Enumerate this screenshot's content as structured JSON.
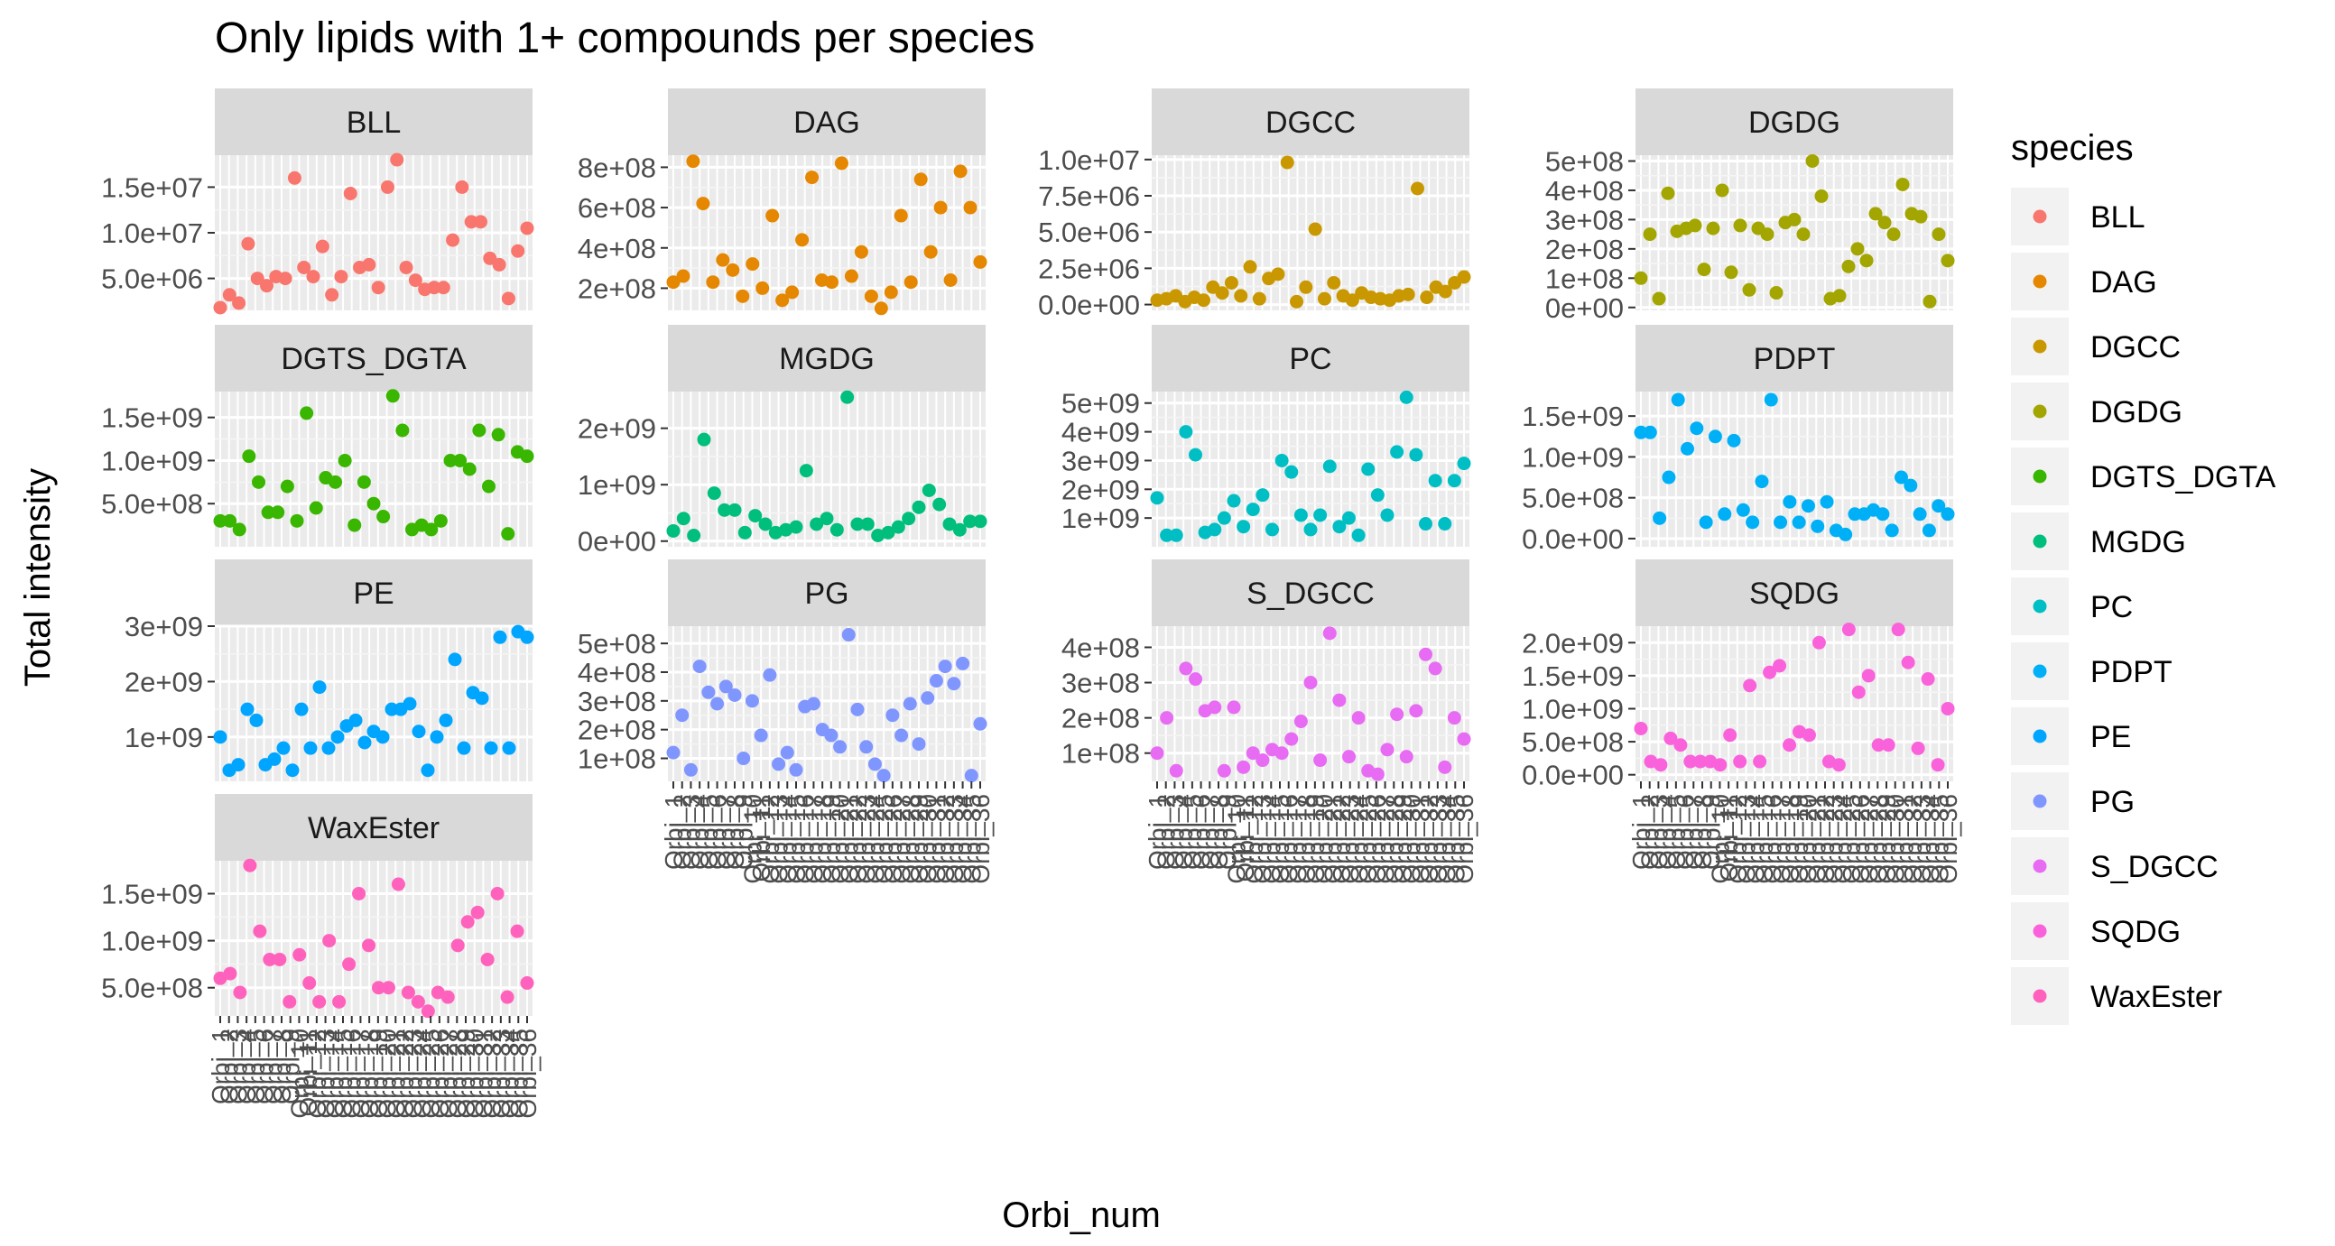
{
  "chart_data": {
    "type": "scatter",
    "title": "Only lipids with 1+ compounds per species",
    "xlabel": "Orbi_num",
    "ylabel": "Total intensity",
    "legend": {
      "title": "species",
      "placement": "right"
    },
    "x_tick_label": "Orbi_",
    "grid": true,
    "panels": [
      {
        "name": "BLL",
        "color": "#F8766D",
        "ylim": [
          1500000,
          18500000
        ],
        "ticks": [
          {
            "v": 5000000,
            "label": "5.0e+06"
          },
          {
            "v": 10000000,
            "label": "1.0e+07"
          },
          {
            "v": 15000000,
            "label": "1.5e+07"
          }
        ],
        "values": [
          1800000,
          3200000,
          2300000,
          8800000,
          5000000,
          4200000,
          5200000,
          5000000,
          16000000,
          6200000,
          5200000,
          8500000,
          3200000,
          5200000,
          14300000,
          6200000,
          6500000,
          4000000,
          15000000,
          18000000,
          6200000,
          4800000,
          3800000,
          4000000,
          4000000,
          9200000,
          15000000,
          11200000,
          11200000,
          7200000,
          6500000,
          2800000,
          8000000,
          10500000
        ]
      },
      {
        "name": "DAG",
        "color": "#E58700",
        "ylim": [
          90000000,
          860000000
        ],
        "ticks": [
          {
            "v": 200000000,
            "label": "2e+08"
          },
          {
            "v": 400000000,
            "label": "4e+08"
          },
          {
            "v": 600000000,
            "label": "6e+08"
          },
          {
            "v": 800000000,
            "label": "8e+08"
          }
        ],
        "values": [
          230000000,
          260000000,
          830000000,
          620000000,
          230000000,
          340000000,
          290000000,
          160000000,
          320000000,
          200000000,
          560000000,
          140000000,
          180000000,
          440000000,
          750000000,
          240000000,
          230000000,
          820000000,
          260000000,
          380000000,
          160000000,
          100000000,
          180000000,
          560000000,
          230000000,
          740000000,
          380000000,
          600000000,
          240000000,
          780000000,
          600000000,
          330000000
        ]
      },
      {
        "name": "DGCC",
        "color": "#C99800",
        "ylim": [
          -400000,
          10300000
        ],
        "ticks": [
          {
            "v": 0,
            "label": "0.0e+00"
          },
          {
            "v": 2500000,
            "label": "2.5e+06"
          },
          {
            "v": 5000000,
            "label": "5.0e+06"
          },
          {
            "v": 7500000,
            "label": "7.5e+06"
          },
          {
            "v": 10000000,
            "label": "1.0e+07"
          }
        ],
        "values": [
          300000,
          400000,
          600000,
          200000,
          500000,
          300000,
          1200000,
          800000,
          1500000,
          600000,
          2600000,
          400000,
          1800000,
          2100000,
          9800000,
          200000,
          1200000,
          5200000,
          400000,
          1500000,
          600000,
          300000,
          800000,
          500000,
          400000,
          300000,
          600000,
          700000,
          8000000,
          500000,
          1200000,
          900000,
          1500000,
          1900000
        ]
      },
      {
        "name": "DGDG",
        "color": "#A3A500",
        "ylim": [
          -10000000,
          520000000
        ],
        "ticks": [
          {
            "v": 0,
            "label": "0e+00"
          },
          {
            "v": 100000000,
            "label": "1e+08"
          },
          {
            "v": 200000000,
            "label": "2e+08"
          },
          {
            "v": 300000000,
            "label": "3e+08"
          },
          {
            "v": 400000000,
            "label": "4e+08"
          },
          {
            "v": 500000000,
            "label": "5e+08"
          }
        ],
        "values": [
          100000000,
          250000000,
          30000000,
          390000000,
          260000000,
          270000000,
          280000000,
          130000000,
          270000000,
          400000000,
          120000000,
          280000000,
          60000000,
          270000000,
          250000000,
          50000000,
          290000000,
          300000000,
          250000000,
          500000000,
          380000000,
          30000000,
          40000000,
          140000000,
          200000000,
          160000000,
          320000000,
          290000000,
          250000000,
          420000000,
          320000000,
          310000000,
          20000000,
          250000000,
          160000000
        ]
      },
      {
        "name": "DGTS_DGTA",
        "color": "#39B600",
        "ylim": [
          0,
          1800000000
        ],
        "ticks": [
          {
            "v": 500000000,
            "label": "5.0e+08"
          },
          {
            "v": 1000000000,
            "label": "1.0e+09"
          },
          {
            "v": 1500000000,
            "label": "1.5e+09"
          }
        ],
        "values": [
          300000000,
          300000000,
          200000000,
          1050000000,
          750000000,
          400000000,
          400000000,
          700000000,
          300000000,
          1550000000,
          450000000,
          800000000,
          750000000,
          1000000000,
          250000000,
          750000000,
          500000000,
          350000000,
          1750000000,
          1350000000,
          200000000,
          250000000,
          200000000,
          300000000,
          1000000000,
          1000000000,
          900000000,
          1350000000,
          700000000,
          1300000000,
          150000000,
          1100000000,
          1050000000
        ]
      },
      {
        "name": "MGDG",
        "color": "#00BF7D",
        "ylim": [
          -100000000,
          2650000000
        ],
        "ticks": [
          {
            "v": 0,
            "label": "0e+00"
          },
          {
            "v": 1000000000,
            "label": "1e+09"
          },
          {
            "v": 2000000000,
            "label": "2e+09"
          }
        ],
        "values": [
          180000000,
          400000000,
          100000000,
          1800000000,
          850000000,
          550000000,
          550000000,
          150000000,
          450000000,
          300000000,
          150000000,
          200000000,
          250000000,
          1250000000,
          300000000,
          400000000,
          200000000,
          2550000000,
          300000000,
          300000000,
          100000000,
          150000000,
          250000000,
          400000000,
          600000000,
          900000000,
          650000000,
          300000000,
          200000000,
          350000000,
          350000000
        ]
      },
      {
        "name": "PC",
        "color": "#00BFC4",
        "ylim": [
          0,
          5400000000
        ],
        "ticks": [
          {
            "v": 1000000000,
            "label": "1e+09"
          },
          {
            "v": 2000000000,
            "label": "2e+09"
          },
          {
            "v": 3000000000,
            "label": "3e+09"
          },
          {
            "v": 4000000000,
            "label": "4e+09"
          },
          {
            "v": 5000000000,
            "label": "5e+09"
          }
        ],
        "values": [
          1700000000,
          400000000,
          400000000,
          4000000000,
          3200000000,
          500000000,
          600000000,
          1000000000,
          1600000000,
          700000000,
          1300000000,
          1800000000,
          600000000,
          3000000000,
          2600000000,
          1100000000,
          600000000,
          1100000000,
          2800000000,
          700000000,
          1000000000,
          400000000,
          2700000000,
          1800000000,
          1100000000,
          3300000000,
          5200000000,
          3200000000,
          800000000,
          2300000000,
          800000000,
          2300000000,
          2900000000
        ]
      },
      {
        "name": "PDPT",
        "color": "#00B0F6",
        "ylim": [
          -100000000,
          1800000000
        ],
        "ticks": [
          {
            "v": 0,
            "label": "0.0e+00"
          },
          {
            "v": 500000000,
            "label": "5.0e+08"
          },
          {
            "v": 1000000000,
            "label": "1.0e+09"
          },
          {
            "v": 1500000000,
            "label": "1.5e+09"
          }
        ],
        "values": [
          1300000000,
          1300000000,
          250000000,
          750000000,
          1700000000,
          1100000000,
          1350000000,
          200000000,
          1250000000,
          300000000,
          1200000000,
          350000000,
          200000000,
          700000000,
          1700000000,
          200000000,
          450000000,
          200000000,
          400000000,
          150000000,
          450000000,
          100000000,
          50000000,
          300000000,
          300000000,
          350000000,
          300000000,
          100000000,
          750000000,
          650000000,
          300000000,
          100000000,
          400000000,
          300000000
        ]
      },
      {
        "name": "PE",
        "color": "#00A5FF",
        "ylim": [
          200000000,
          3000000000
        ],
        "ticks": [
          {
            "v": 1000000000,
            "label": "1e+09"
          },
          {
            "v": 2000000000,
            "label": "2e+09"
          },
          {
            "v": 3000000000,
            "label": "3e+09"
          }
        ],
        "values": [
          1000000000,
          400000000,
          500000000,
          1500000000,
          1300000000,
          500000000,
          600000000,
          800000000,
          400000000,
          1500000000,
          800000000,
          1900000000,
          800000000,
          1000000000,
          1200000000,
          1300000000,
          900000000,
          1100000000,
          1000000000,
          1500000000,
          1500000000,
          1600000000,
          1100000000,
          400000000,
          1000000000,
          1300000000,
          2400000000,
          800000000,
          1800000000,
          1700000000,
          800000000,
          2800000000,
          800000000,
          2900000000,
          2800000000
        ]
      },
      {
        "name": "PG",
        "color": "#7F96FF",
        "ylim": [
          20000000,
          560000000
        ],
        "ticks": [
          {
            "v": 100000000,
            "label": "1e+08"
          },
          {
            "v": 200000000,
            "label": "2e+08"
          },
          {
            "v": 300000000,
            "label": "3e+08"
          },
          {
            "v": 400000000,
            "label": "4e+08"
          },
          {
            "v": 500000000,
            "label": "5e+08"
          }
        ],
        "values": [
          120000000,
          250000000,
          60000000,
          420000000,
          330000000,
          290000000,
          350000000,
          320000000,
          100000000,
          300000000,
          180000000,
          390000000,
          80000000,
          120000000,
          60000000,
          280000000,
          290000000,
          200000000,
          180000000,
          140000000,
          530000000,
          270000000,
          140000000,
          80000000,
          40000000,
          250000000,
          180000000,
          290000000,
          150000000,
          310000000,
          370000000,
          420000000,
          360000000,
          430000000,
          40000000,
          220000000
        ]
      },
      {
        "name": "S_DGCC",
        "color": "#E76BF3",
        "ylim": [
          20000000,
          460000000
        ],
        "ticks": [
          {
            "v": 100000000,
            "label": "1e+08"
          },
          {
            "v": 200000000,
            "label": "2e+08"
          },
          {
            "v": 300000000,
            "label": "3e+08"
          },
          {
            "v": 400000000,
            "label": "4e+08"
          }
        ],
        "values": [
          100000000,
          200000000,
          50000000,
          340000000,
          310000000,
          220000000,
          230000000,
          50000000,
          230000000,
          60000000,
          100000000,
          80000000,
          110000000,
          100000000,
          140000000,
          190000000,
          300000000,
          80000000,
          440000000,
          250000000,
          90000000,
          200000000,
          50000000,
          40000000,
          110000000,
          210000000,
          90000000,
          220000000,
          380000000,
          340000000,
          60000000,
          200000000,
          140000000
        ]
      },
      {
        "name": "SQDG",
        "color": "#FA62DB",
        "ylim": [
          -100000000,
          2250000000
        ],
        "ticks": [
          {
            "v": 0,
            "label": "0.0e+00"
          },
          {
            "v": 500000000,
            "label": "5.0e+08"
          },
          {
            "v": 1000000000,
            "label": "1.0e+09"
          },
          {
            "v": 1500000000,
            "label": "1.5e+09"
          },
          {
            "v": 2000000000,
            "label": "2.0e+09"
          }
        ],
        "values": [
          700000000,
          200000000,
          150000000,
          550000000,
          450000000,
          200000000,
          200000000,
          200000000,
          150000000,
          600000000,
          200000000,
          1350000000,
          200000000,
          1550000000,
          1650000000,
          450000000,
          650000000,
          600000000,
          2000000000,
          200000000,
          150000000,
          2200000000,
          1250000000,
          1500000000,
          450000000,
          450000000,
          2200000000,
          1700000000,
          400000000,
          1450000000,
          150000000,
          1000000000
        ]
      },
      {
        "name": "WaxEster",
        "color": "#FF62BC",
        "ylim": [
          200000000,
          1850000000
        ],
        "ticks": [
          {
            "v": 500000000,
            "label": "5.0e+08"
          },
          {
            "v": 1000000000,
            "label": "1.0e+09"
          },
          {
            "v": 1500000000,
            "label": "1.5e+09"
          }
        ],
        "values": [
          600000000,
          650000000,
          450000000,
          1800000000,
          1100000000,
          800000000,
          800000000,
          350000000,
          850000000,
          550000000,
          350000000,
          1000000000,
          350000000,
          750000000,
          1500000000,
          950000000,
          500000000,
          500000000,
          1600000000,
          450000000,
          350000000,
          250000000,
          450000000,
          400000000,
          950000000,
          1200000000,
          1300000000,
          800000000,
          1500000000,
          400000000,
          1100000000,
          550000000
        ]
      }
    ]
  }
}
